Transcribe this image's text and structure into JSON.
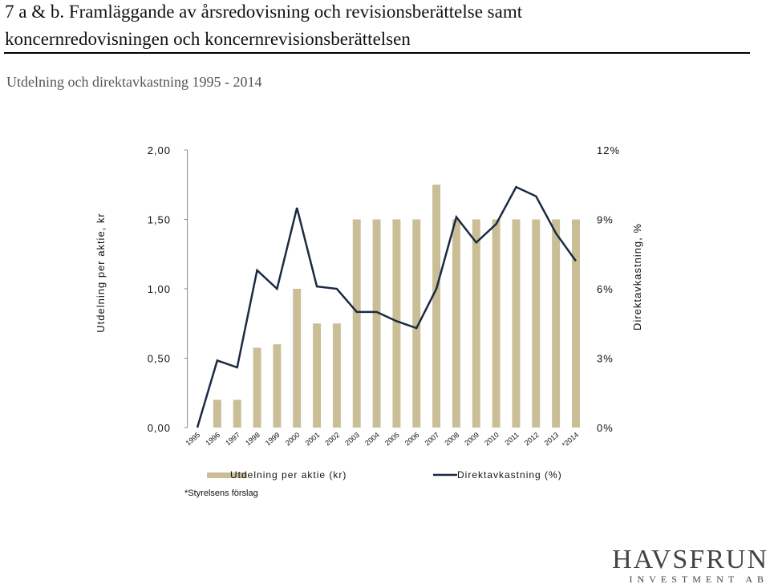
{
  "header": {
    "title": [
      "7 a & b. Framläggande av årsredovisning och revisionsberättelse samt",
      "koncernredovisningen och koncernrevisionsberättelsen"
    ]
  },
  "chart_data": {
    "type": "bar",
    "title": "Utdelning och direktavkastning 1995 - 2014",
    "y_label": "Utdelning per aktie, kr",
    "y2_label": "Direktavkastning, %",
    "categories": [
      "1995",
      "1996",
      "1997",
      "1998",
      "1999",
      "2000",
      "2001",
      "2002",
      "2003",
      "2004",
      "2005",
      "2006",
      "2007",
      "2008",
      "2009",
      "2010",
      "2011",
      "2012",
      "2013",
      "*2014"
    ],
    "series": [
      {
        "name": "Utdelning per aktie (kr)",
        "type": "bar",
        "color": "#c9be96",
        "values": [
          0,
          0.2,
          0.2,
          0.575,
          0.6,
          1.0,
          0.75,
          0.75,
          1.5,
          1.5,
          1.5,
          1.5,
          1.75,
          1.5,
          1.5,
          1.5,
          1.5,
          1.5,
          1.5,
          1.5
        ]
      },
      {
        "name": "Direktavkastning (%)",
        "type": "line",
        "axis": "y2",
        "color": "#1b2a44",
        "values": [
          0,
          2.9,
          2.6,
          6.8,
          6.0,
          9.5,
          6.1,
          6.0,
          5.0,
          5.0,
          4.6,
          4.3,
          6.0,
          9.1,
          8.0,
          8.8,
          10.4,
          10.0,
          8.4,
          7.2
        ]
      }
    ],
    "ylim": [
      0,
      2
    ],
    "yticks": [
      {
        "value": 0,
        "label": "0,00"
      },
      {
        "value": 0.5,
        "label": "0,50"
      },
      {
        "value": 1,
        "label": "1,00"
      },
      {
        "value": 1.5,
        "label": "1,50"
      },
      {
        "value": 2,
        "label": "2,00"
      }
    ],
    "y2lim": [
      0,
      12
    ],
    "y2ticks": [
      {
        "value": 0,
        "label": "0%"
      },
      {
        "value": 3,
        "label": "3%"
      },
      {
        "value": 6,
        "label": "6%"
      },
      {
        "value": 9,
        "label": "9%"
      },
      {
        "value": 12,
        "label": "12%"
      }
    ],
    "grid": false,
    "legend": "bottom"
  },
  "footnote": "*Styrelsens förslag",
  "logo": {
    "name": "HAVSFRUN",
    "sub": "INVESTMENT AB"
  }
}
